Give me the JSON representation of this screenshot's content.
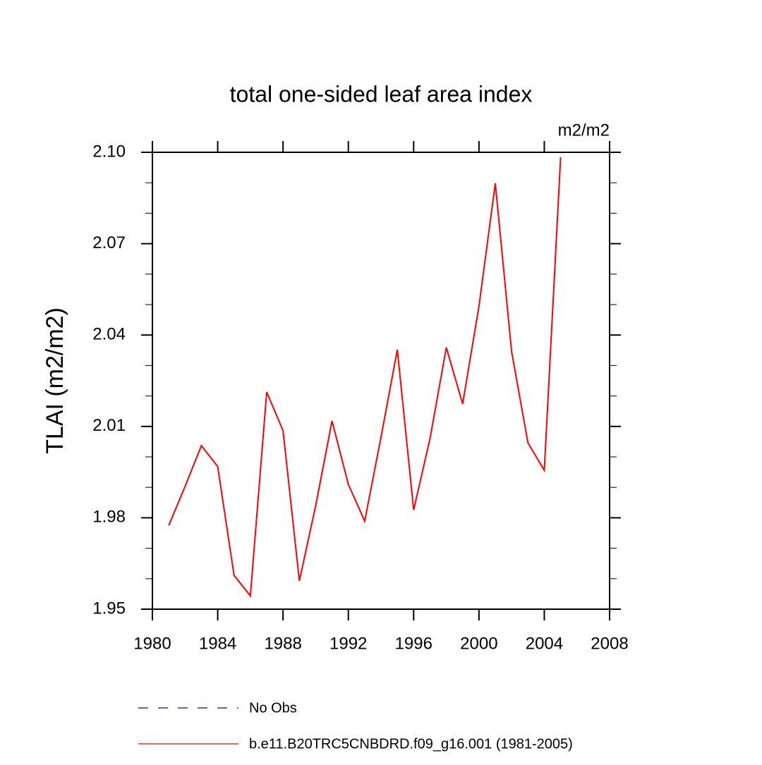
{
  "chart_data": {
    "type": "line",
    "title": "total one-sided leaf area index",
    "units": "m2/m2",
    "y_label": "TLAI  (m2/m2)",
    "x": [
      1981,
      1982,
      1983,
      1984,
      1985,
      1986,
      1987,
      1988,
      1989,
      1990,
      1991,
      1992,
      1993,
      1994,
      1995,
      1996,
      1997,
      1998,
      1999,
      2000,
      2001,
      2002,
      2003,
      2004,
      2005
    ],
    "series": [
      {
        "name": "No Obs",
        "color": "#0000ff",
        "dashed": true,
        "values": [
          null,
          null,
          null,
          null,
          null,
          null,
          null,
          null,
          null,
          null,
          null,
          null,
          null,
          null,
          null,
          null,
          null,
          null,
          null,
          null,
          null,
          null,
          null,
          null,
          null
        ]
      },
      {
        "name": "b.e11.B20TRC5CNBDRD.f09_g16.001 (1981-2005)",
        "color": "#ff0000",
        "dashed": false,
        "values": [
          1.9775,
          1.9903,
          2.0037,
          1.9968,
          1.9611,
          1.9544,
          2.0213,
          2.0086,
          1.9593,
          1.984,
          2.0118,
          1.991,
          1.9789,
          2.0065,
          2.0352,
          1.9826,
          2.006,
          2.0359,
          2.0174,
          2.0495,
          2.0898,
          2.0345,
          2.0046,
          1.9956,
          2.0984
        ]
      }
    ],
    "xlim": [
      1980,
      2008
    ],
    "xticks": [
      1980,
      1984,
      1988,
      1992,
      1996,
      2000,
      2004,
      2008
    ],
    "ylim": [
      1.95,
      2.1
    ],
    "yticks": [
      1.95,
      1.98,
      2.01,
      2.04,
      2.07,
      {
        "value": 2.1,
        "label": "2.10"
      }
    ],
    "yminorticks": [
      1.96,
      1.97,
      1.99,
      2.0,
      2.02,
      2.03,
      2.05,
      2.06,
      2.08,
      2.09
    ]
  }
}
